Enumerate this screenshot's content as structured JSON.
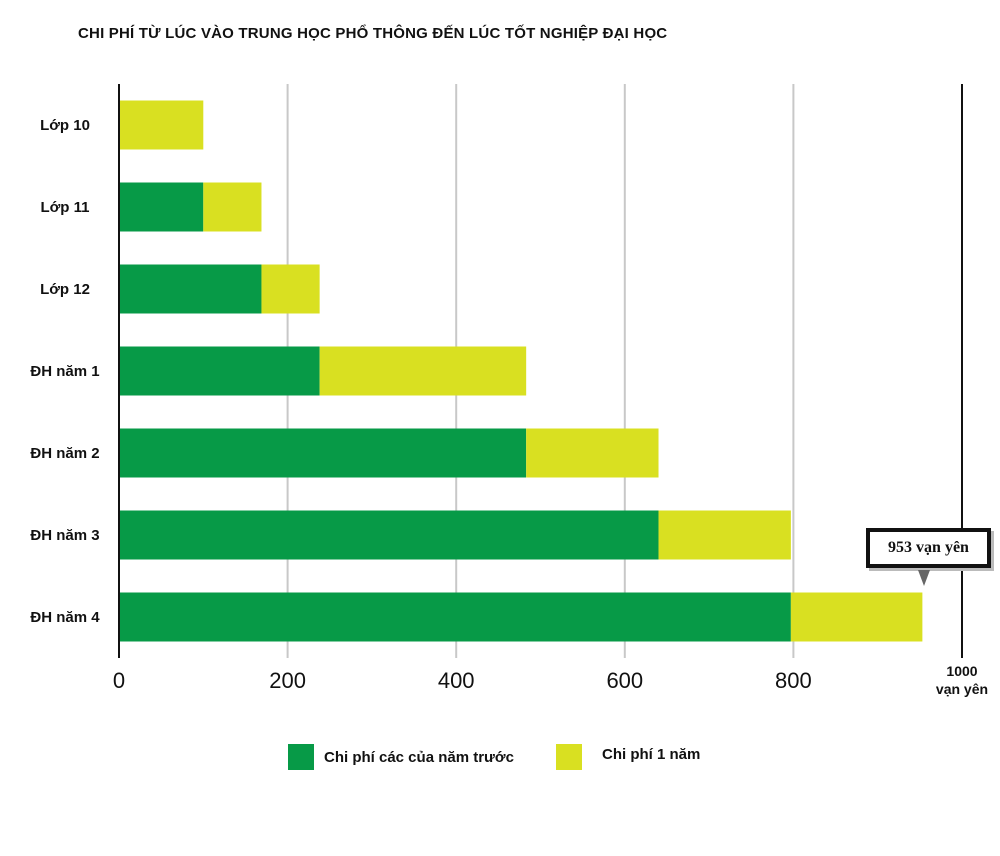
{
  "chart_data": {
    "type": "bar",
    "orientation": "horizontal",
    "stacked": true,
    "title": "CHI PHÍ TỪ LÚC VÀO TRUNG HỌC PHỔ THÔNG ĐẾN LÚC TỐT NGHIỆP ĐẠI HỌC",
    "categories": [
      "Lớp 10",
      "Lớp 11",
      "Lớp 12",
      "ĐH năm 1",
      "ĐH năm 2",
      "ĐH năm 3",
      "ĐH năm 4"
    ],
    "series": [
      {
        "name": "Chi phí các của năm trước",
        "color": "#079a47",
        "values": [
          0,
          100,
          169,
          238,
          483,
          640,
          797
        ]
      },
      {
        "name": "Chi phí 1 năm",
        "color": "#d9e021",
        "values": [
          100,
          69,
          69,
          245,
          157,
          157,
          156
        ]
      }
    ],
    "xlim": [
      0,
      1000
    ],
    "x_ticks": [
      "0",
      "200",
      "400",
      "600",
      "800"
    ],
    "x_last_tick": {
      "value": "1000",
      "unit": "vạn yên"
    },
    "grid": true,
    "legend_position": "bottom",
    "annotation": {
      "text": "953 vạn yên",
      "category": "ĐH năm 4",
      "value": 953
    }
  }
}
